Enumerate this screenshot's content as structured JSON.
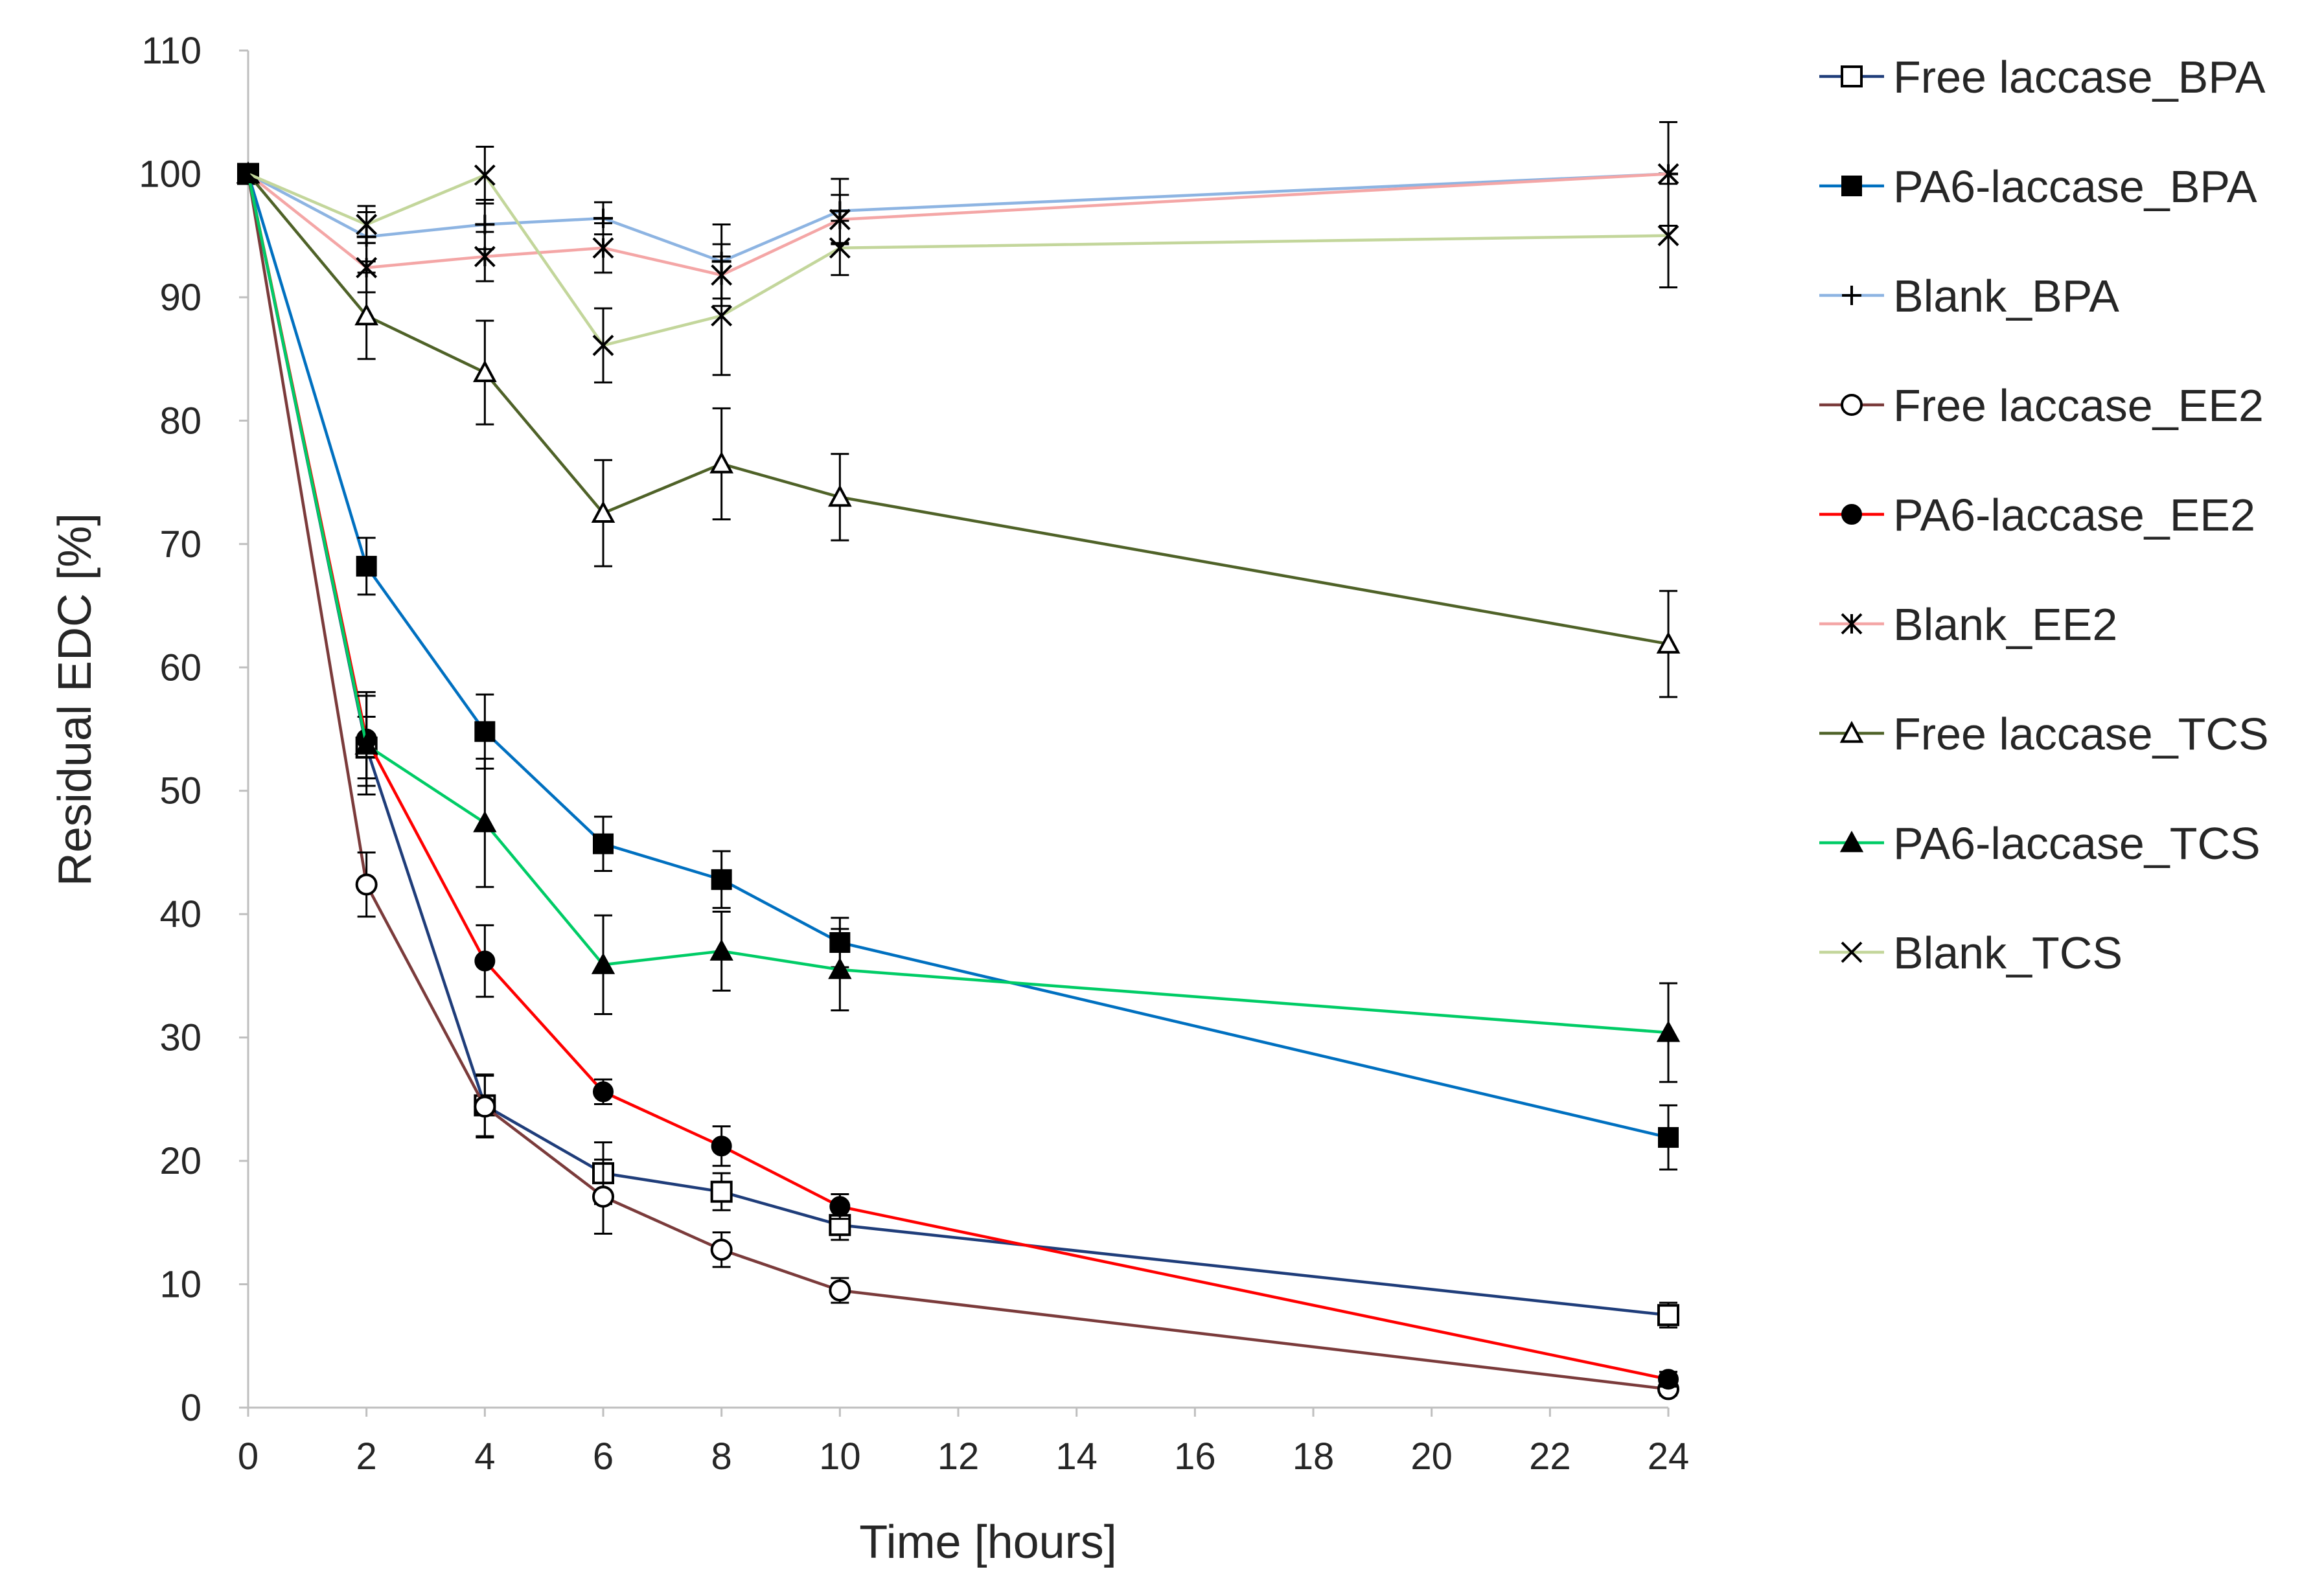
{
  "chart_data": {
    "type": "line",
    "title": "",
    "xlabel": "Time [hours]",
    "ylabel": "Residual EDC [%]",
    "xlim": [
      0,
      24
    ],
    "ylim": [
      0,
      110
    ],
    "x_ticks": [
      0,
      2,
      4,
      6,
      8,
      10,
      12,
      14,
      16,
      18,
      20,
      22,
      24
    ],
    "y_ticks": [
      0,
      10,
      20,
      30,
      40,
      50,
      60,
      70,
      80,
      90,
      100,
      110
    ],
    "grid": false,
    "legend_position": "right",
    "x": [
      0,
      2,
      4,
      6,
      8,
      10,
      24
    ],
    "series": [
      {
        "name": "Free laccase_BPA",
        "color": "#1f3d7a",
        "marker": "square-open",
        "values": [
          100,
          53.5,
          24.5,
          19,
          17.5,
          14.8,
          7.5
        ],
        "errors": [
          0,
          2.5,
          2.5,
          2.5,
          1.5,
          1.2,
          1.0
        ]
      },
      {
        "name": "PA6-laccase_BPA",
        "color": "#0070c0",
        "marker": "square-filled",
        "values": [
          100,
          68.2,
          54.8,
          45.7,
          42.8,
          37.7,
          21.9
        ],
        "errors": [
          0,
          2.3,
          3.0,
          2.2,
          2.3,
          2.0,
          2.6
        ]
      },
      {
        "name": "Blank_BPA",
        "color": "#8db4e2",
        "marker": "plus",
        "values": [
          100,
          94.9,
          95.9,
          96.4,
          92.9,
          97,
          100
        ],
        "errors": [
          0,
          2.0,
          2.0,
          1.3,
          3.0,
          2.6,
          4.2
        ]
      },
      {
        "name": "Free laccase_EE2",
        "color": "#7b3b3b",
        "marker": "circle-open",
        "values": [
          100,
          42.4,
          24.4,
          17.1,
          12.8,
          9.5,
          1.5
        ],
        "errors": [
          0,
          2.6,
          2.5,
          3.0,
          1.4,
          1.0,
          0.5
        ]
      },
      {
        "name": "PA6-laccase_EE2",
        "color": "#ff0000",
        "marker": "circle-filled",
        "values": [
          100,
          54.2,
          36.2,
          25.6,
          21.2,
          16.3,
          2.3
        ],
        "errors": [
          0,
          3.8,
          2.9,
          1.0,
          1.6,
          1.0,
          0.6
        ]
      },
      {
        "name": "Blank_EE2",
        "color": "#f4a6a6",
        "marker": "asterisk",
        "values": [
          100,
          92.4,
          93.3,
          94,
          91.8,
          96.3,
          100
        ],
        "errors": [
          0,
          2.0,
          2.0,
          2.0,
          2.5,
          2.0,
          4.2
        ]
      },
      {
        "name": "Free laccase_TCS",
        "color": "#4f6228",
        "marker": "triangle-open",
        "values": [
          100,
          88.5,
          83.9,
          72.5,
          76.5,
          73.8,
          61.9
        ],
        "errors": [
          0,
          3.5,
          4.2,
          4.3,
          4.5,
          3.5,
          4.3
        ]
      },
      {
        "name": "PA6-laccase_TCS",
        "color": "#00cc66",
        "marker": "triangle-filled",
        "values": [
          100,
          53.7,
          47.4,
          35.9,
          37,
          35.5,
          30.4
        ],
        "errors": [
          0,
          4.0,
          5.2,
          4.0,
          3.2,
          3.3,
          4.0
        ]
      },
      {
        "name": "Blank_TCS",
        "color": "#c3d69b",
        "marker": "cross",
        "values": [
          100,
          95.9,
          99.9,
          86.1,
          88.5,
          94,
          95
        ],
        "errors": [
          0,
          1.5,
          2.3,
          3.0,
          4.8,
          2.2,
          4.2
        ]
      }
    ]
  }
}
